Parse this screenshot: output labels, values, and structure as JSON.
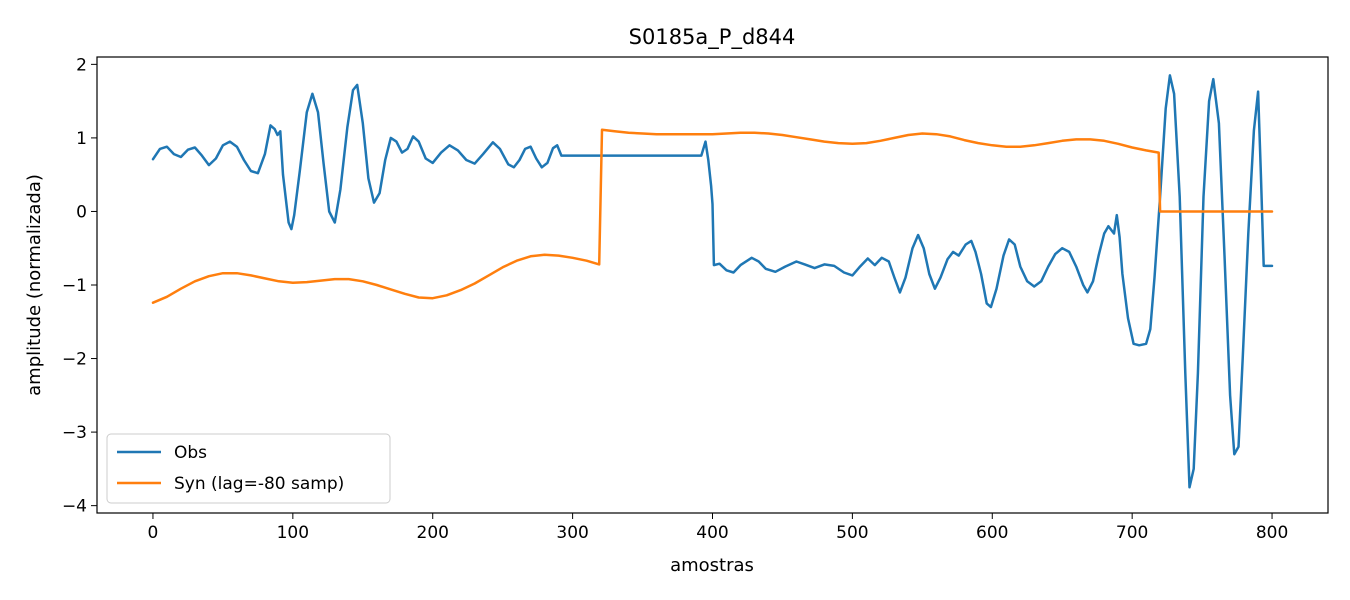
{
  "chart_data": {
    "type": "line",
    "title": "S0185a_P_d844",
    "xlabel": "amostras",
    "ylabel": "amplitude (normalizada)",
    "xlim": [
      -40,
      840
    ],
    "ylim": [
      -4.1,
      2.1
    ],
    "xticks": [
      0,
      100,
      200,
      300,
      400,
      500,
      600,
      700,
      800
    ],
    "yticks": [
      2,
      1,
      0,
      -1,
      -2,
      -3,
      -4
    ],
    "ytick_labels": [
      "2",
      "1",
      "0",
      "−1",
      "−2",
      "−3",
      "−4"
    ],
    "grid": false,
    "legend_position": "lower-left",
    "series": [
      {
        "name": "Obs",
        "color": "#1f77b4",
        "points": [
          [
            0,
            0.71
          ],
          [
            5,
            0.85
          ],
          [
            10,
            0.88
          ],
          [
            15,
            0.78
          ],
          [
            20,
            0.74
          ],
          [
            25,
            0.84
          ],
          [
            30,
            0.87
          ],
          [
            35,
            0.76
          ],
          [
            40,
            0.63
          ],
          [
            45,
            0.72
          ],
          [
            50,
            0.9
          ],
          [
            55,
            0.95
          ],
          [
            60,
            0.88
          ],
          [
            65,
            0.7
          ],
          [
            70,
            0.55
          ],
          [
            75,
            0.52
          ],
          [
            80,
            0.78
          ],
          [
            84,
            1.17
          ],
          [
            87,
            1.12
          ],
          [
            89,
            1.04
          ],
          [
            91,
            1.09
          ],
          [
            93,
            0.5
          ],
          [
            97,
            -0.15
          ],
          [
            99,
            -0.24
          ],
          [
            101,
            -0.05
          ],
          [
            105,
            0.55
          ],
          [
            110,
            1.35
          ],
          [
            114,
            1.6
          ],
          [
            118,
            1.35
          ],
          [
            122,
            0.65
          ],
          [
            126,
            0.0
          ],
          [
            130,
            -0.15
          ],
          [
            134,
            0.3
          ],
          [
            139,
            1.15
          ],
          [
            143,
            1.65
          ],
          [
            146,
            1.72
          ],
          [
            150,
            1.2
          ],
          [
            154,
            0.45
          ],
          [
            158,
            0.12
          ],
          [
            162,
            0.25
          ],
          [
            166,
            0.7
          ],
          [
            170,
            1.0
          ],
          [
            174,
            0.95
          ],
          [
            178,
            0.8
          ],
          [
            182,
            0.85
          ],
          [
            186,
            1.02
          ],
          [
            190,
            0.95
          ],
          [
            195,
            0.72
          ],
          [
            200,
            0.66
          ],
          [
            206,
            0.8
          ],
          [
            212,
            0.9
          ],
          [
            218,
            0.83
          ],
          [
            224,
            0.7
          ],
          [
            230,
            0.65
          ],
          [
            236,
            0.78
          ],
          [
            243,
            0.94
          ],
          [
            248,
            0.85
          ],
          [
            254,
            0.64
          ],
          [
            258,
            0.6
          ],
          [
            262,
            0.7
          ],
          [
            266,
            0.85
          ],
          [
            270,
            0.88
          ],
          [
            274,
            0.72
          ],
          [
            278,
            0.6
          ],
          [
            282,
            0.66
          ],
          [
            286,
            0.86
          ],
          [
            289,
            0.9
          ],
          [
            292,
            0.76
          ],
          [
            300,
            0.76
          ],
          [
            350,
            0.76
          ],
          [
            392,
            0.76
          ],
          [
            395,
            0.95
          ],
          [
            397,
            0.7
          ],
          [
            399,
            0.35
          ],
          [
            400,
            0.1
          ],
          [
            401,
            -0.73
          ],
          [
            405,
            -0.71
          ],
          [
            410,
            -0.8
          ],
          [
            415,
            -0.83
          ],
          [
            420,
            -0.73
          ],
          [
            428,
            -0.63
          ],
          [
            433,
            -0.68
          ],
          [
            438,
            -0.78
          ],
          [
            445,
            -0.82
          ],
          [
            452,
            -0.75
          ],
          [
            460,
            -0.68
          ],
          [
            466,
            -0.72
          ],
          [
            473,
            -0.77
          ],
          [
            480,
            -0.72
          ],
          [
            487,
            -0.74
          ],
          [
            494,
            -0.83
          ],
          [
            500,
            -0.87
          ],
          [
            505,
            -0.76
          ],
          [
            511,
            -0.64
          ],
          [
            516,
            -0.73
          ],
          [
            521,
            -0.63
          ],
          [
            526,
            -0.68
          ],
          [
            530,
            -0.9
          ],
          [
            534,
            -1.1
          ],
          [
            538,
            -0.9
          ],
          [
            543,
            -0.5
          ],
          [
            547,
            -0.32
          ],
          [
            551,
            -0.5
          ],
          [
            555,
            -0.85
          ],
          [
            559,
            -1.05
          ],
          [
            563,
            -0.9
          ],
          [
            568,
            -0.65
          ],
          [
            572,
            -0.55
          ],
          [
            576,
            -0.6
          ],
          [
            581,
            -0.45
          ],
          [
            585,
            -0.4
          ],
          [
            588,
            -0.55
          ],
          [
            592,
            -0.85
          ],
          [
            596,
            -1.25
          ],
          [
            599,
            -1.3
          ],
          [
            603,
            -1.05
          ],
          [
            608,
            -0.6
          ],
          [
            612,
            -0.38
          ],
          [
            616,
            -0.45
          ],
          [
            620,
            -0.75
          ],
          [
            625,
            -0.95
          ],
          [
            630,
            -1.02
          ],
          [
            635,
            -0.95
          ],
          [
            640,
            -0.75
          ],
          [
            645,
            -0.58
          ],
          [
            650,
            -0.5
          ],
          [
            655,
            -0.55
          ],
          [
            660,
            -0.75
          ],
          [
            665,
            -1.0
          ],
          [
            668,
            -1.1
          ],
          [
            672,
            -0.95
          ],
          [
            676,
            -0.6
          ],
          [
            680,
            -0.3
          ],
          [
            683,
            -0.2
          ],
          [
            687,
            -0.3
          ],
          [
            689,
            -0.05
          ],
          [
            691,
            -0.35
          ],
          [
            693,
            -0.85
          ],
          [
            697,
            -1.45
          ],
          [
            701,
            -1.8
          ],
          [
            705,
            -1.82
          ],
          [
            710,
            -1.8
          ],
          [
            713,
            -1.6
          ],
          [
            716,
            -0.9
          ],
          [
            720,
            0.2
          ],
          [
            724,
            1.4
          ],
          [
            727,
            1.85
          ],
          [
            730,
            1.6
          ],
          [
            734,
            0.2
          ],
          [
            738,
            -2.2
          ],
          [
            741,
            -3.75
          ],
          [
            744,
            -3.5
          ],
          [
            747,
            -2.2
          ],
          [
            751,
            0.2
          ],
          [
            755,
            1.5
          ],
          [
            758,
            1.8
          ],
          [
            762,
            1.2
          ],
          [
            766,
            -0.6
          ],
          [
            770,
            -2.5
          ],
          [
            773,
            -3.3
          ],
          [
            776,
            -3.2
          ],
          [
            779,
            -2.0
          ],
          [
            783,
            -0.3
          ],
          [
            787,
            1.1
          ],
          [
            790,
            1.63
          ],
          [
            792,
            0.5
          ],
          [
            794,
            -0.74
          ],
          [
            800,
            -0.74
          ]
        ]
      },
      {
        "name": "Syn (lag=-80 samp)",
        "color": "#ff7f0e",
        "points": [
          [
            0,
            -1.24
          ],
          [
            10,
            -1.16
          ],
          [
            20,
            -1.05
          ],
          [
            30,
            -0.95
          ],
          [
            40,
            -0.88
          ],
          [
            50,
            -0.84
          ],
          [
            60,
            -0.84
          ],
          [
            70,
            -0.87
          ],
          [
            80,
            -0.91
          ],
          [
            90,
            -0.95
          ],
          [
            100,
            -0.97
          ],
          [
            110,
            -0.96
          ],
          [
            120,
            -0.94
          ],
          [
            130,
            -0.92
          ],
          [
            140,
            -0.92
          ],
          [
            150,
            -0.95
          ],
          [
            160,
            -1.0
          ],
          [
            170,
            -1.06
          ],
          [
            180,
            -1.12
          ],
          [
            190,
            -1.17
          ],
          [
            200,
            -1.18
          ],
          [
            210,
            -1.14
          ],
          [
            220,
            -1.07
          ],
          [
            230,
            -0.98
          ],
          [
            240,
            -0.87
          ],
          [
            250,
            -0.76
          ],
          [
            260,
            -0.67
          ],
          [
            270,
            -0.61
          ],
          [
            280,
            -0.59
          ],
          [
            290,
            -0.6
          ],
          [
            300,
            -0.63
          ],
          [
            310,
            -0.67
          ],
          [
            319,
            -0.72
          ],
          [
            321,
            1.11
          ],
          [
            330,
            1.09
          ],
          [
            340,
            1.07
          ],
          [
            350,
            1.06
          ],
          [
            360,
            1.05
          ],
          [
            370,
            1.05
          ],
          [
            380,
            1.05
          ],
          [
            390,
            1.05
          ],
          [
            400,
            1.05
          ],
          [
            410,
            1.06
          ],
          [
            420,
            1.07
          ],
          [
            430,
            1.07
          ],
          [
            440,
            1.06
          ],
          [
            450,
            1.04
          ],
          [
            460,
            1.01
          ],
          [
            470,
            0.98
          ],
          [
            480,
            0.95
          ],
          [
            490,
            0.93
          ],
          [
            500,
            0.92
          ],
          [
            510,
            0.93
          ],
          [
            520,
            0.96
          ],
          [
            530,
            1.0
          ],
          [
            540,
            1.04
          ],
          [
            550,
            1.06
          ],
          [
            560,
            1.05
          ],
          [
            570,
            1.02
          ],
          [
            580,
            0.97
          ],
          [
            590,
            0.93
          ],
          [
            600,
            0.9
          ],
          [
            610,
            0.88
          ],
          [
            620,
            0.88
          ],
          [
            630,
            0.9
          ],
          [
            640,
            0.93
          ],
          [
            650,
            0.96
          ],
          [
            660,
            0.98
          ],
          [
            670,
            0.98
          ],
          [
            680,
            0.96
          ],
          [
            690,
            0.92
          ],
          [
            700,
            0.87
          ],
          [
            710,
            0.83
          ],
          [
            719,
            0.8
          ],
          [
            720,
            0.0
          ],
          [
            800,
            0.0
          ]
        ]
      }
    ]
  }
}
